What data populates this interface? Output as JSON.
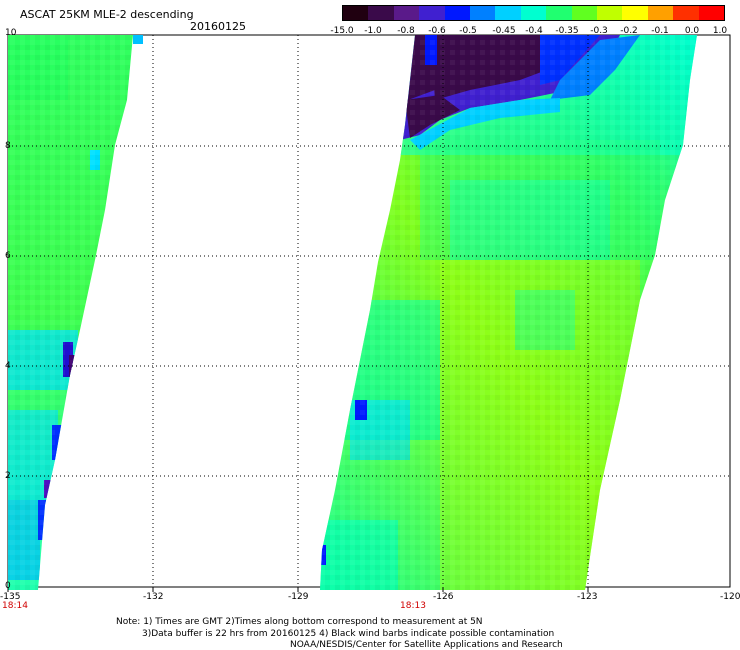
{
  "header": {
    "title": "ASCAT 25KM MLE-2 descending",
    "date": "20160125"
  },
  "colorbar": {
    "labels": [
      "-15.0",
      "-1.0",
      "-0.8",
      "-0.6",
      "-0.5",
      "-0.45",
      "-0.4",
      "-0.35",
      "-0.3",
      "-0.2",
      "-0.1",
      "0.0",
      "1.0"
    ],
    "colors": [
      "#200010",
      "#3a0a4a",
      "#5a1a8a",
      "#4020d0",
      "#0018ff",
      "#0080ff",
      "#00d0ff",
      "#00ffd0",
      "#20ff70",
      "#60ff20",
      "#c0ff00",
      "#ffff00",
      "#ffa000",
      "#ff3000",
      "#ff0000"
    ]
  },
  "axes": {
    "x_ticks": [
      "-135",
      "-132",
      "-129",
      "-126",
      "-123",
      "-120"
    ],
    "y_ticks": [
      "0",
      "2",
      "4",
      "6",
      "8",
      "10"
    ]
  },
  "pass_times": [
    "18:14",
    "18:13"
  ],
  "notes": [
    "Note: 1) Times are GMT 2)Times along bottom correspond to measurement at 5N",
    "3)Data buffer is 22 hrs from 20160125 4) Black wind barbs indicate possible contamination",
    "NOAA/NESDIS/Center for Satellite Applications and Research"
  ]
}
